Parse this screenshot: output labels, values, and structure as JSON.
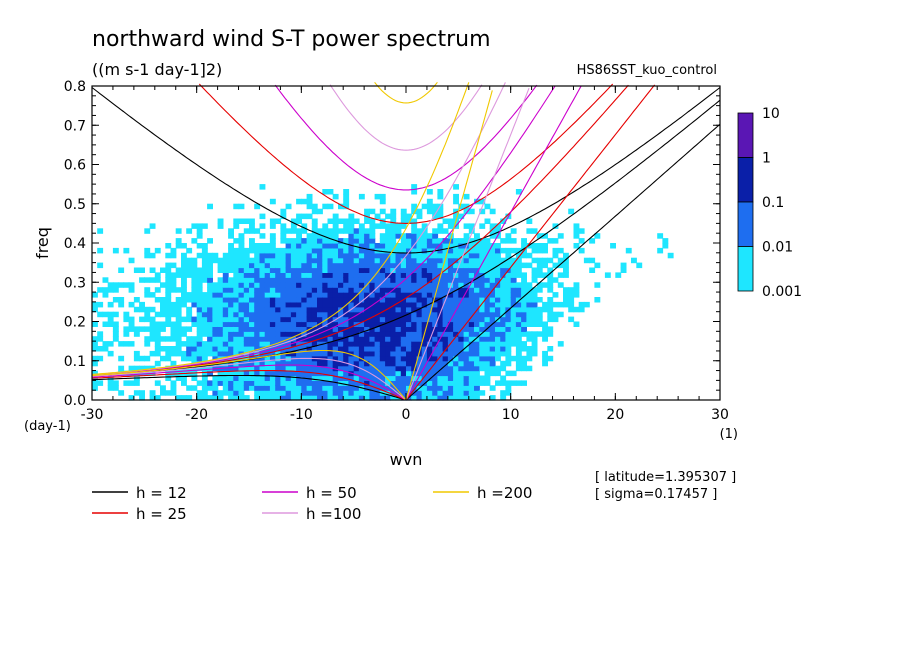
{
  "chart_data": {
    "type": "heatmap",
    "title": "northward wind S-T power spectrum",
    "subtitle": "((m s-1 day-1]2)",
    "run_label": "HS86SST_kuo_control",
    "xlabel": "wvn",
    "ylabel": "freq",
    "x_unit": "(1)",
    "y_unit": "(day-1)",
    "xlim": [
      -30,
      30
    ],
    "ylim": [
      0,
      0.8
    ],
    "x_ticks": [
      -30,
      -20,
      -10,
      0,
      10,
      20,
      30
    ],
    "y_ticks": [
      0.0,
      0.1,
      0.2,
      0.3,
      0.4,
      0.5,
      0.6,
      0.7,
      0.8
    ],
    "x_tick_labels": [
      "-30",
      "-20",
      "-10",
      "0",
      "10",
      "20",
      "30"
    ],
    "y_tick_labels": [
      "0.0",
      "0.1",
      "0.2",
      "0.3",
      "0.4",
      "0.5",
      "0.6",
      "0.7",
      "0.8"
    ],
    "colorbar": {
      "levels": [
        "10",
        "1",
        "0.1",
        "0.01",
        "0.001"
      ],
      "colors": [
        "#5a16b4",
        "#0a1fa8",
        "#1e6ef0",
        "#1ee6ff"
      ]
    },
    "contour_levels_colors": {
      "low": "#1ee6ff",
      "mid": "#1e6ef0",
      "high": "#0a1fa8"
    },
    "dispersion_curves": [
      {
        "label": "h = 12",
        "color": "#000000"
      },
      {
        "label": "h = 25",
        "color": "#e60000"
      },
      {
        "label": "h = 50",
        "color": "#cc00cc"
      },
      {
        "label": "h =100",
        "color": "#dd99dd"
      },
      {
        "label": "h =200",
        "color": "#f0c800"
      }
    ],
    "info": [
      "[ latitude=1.395307 ]",
      "[ sigma=0.17457 ]"
    ]
  }
}
